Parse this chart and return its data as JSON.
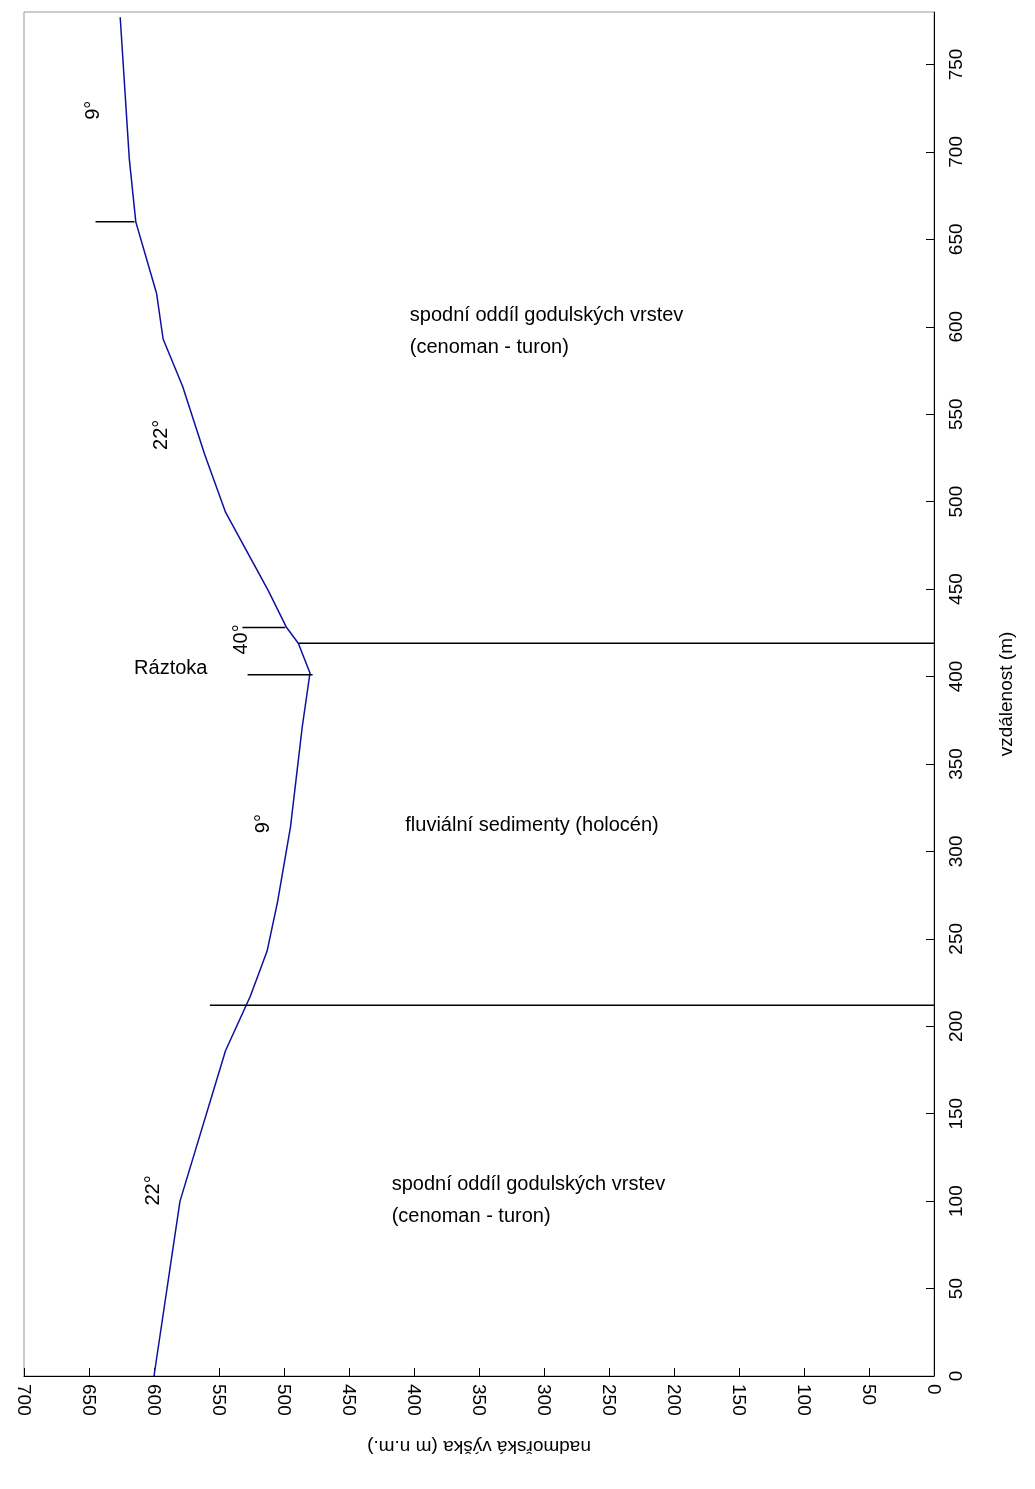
{
  "chart_data": {
    "type": "line",
    "xlabel": "nadmořská výška (m n.m.)",
    "ylabel": "vzdálenost (m)",
    "xlim": [
      700,
      0
    ],
    "xticks": [
      700,
      650,
      600,
      550,
      500,
      450,
      400,
      350,
      300,
      250,
      200,
      150,
      100,
      50,
      0
    ],
    "ylim": [
      0,
      780
    ],
    "yticks": [
      0,
      50,
      100,
      150,
      200,
      250,
      300,
      350,
      400,
      450,
      500,
      550,
      600,
      650,
      700,
      750
    ],
    "grid": false,
    "marker": "none",
    "line_style": "solid",
    "series": [
      {
        "color": "#1010a0",
        "x": [
          600,
          580,
          545,
          526,
          513,
          505,
          495,
          486,
          480,
          489,
          498,
          512,
          545,
          561,
          578,
          593,
          598,
          614,
          619,
          626
        ],
        "values": [
          0,
          100,
          186,
          217,
          243,
          271,
          314,
          371,
          402,
          419,
          428,
          449,
          494,
          527,
          566,
          593,
          619,
          660,
          696,
          777
        ]
      },
      {
        "color": "#000000",
        "x": [
          489,
          0
        ],
        "values": [
          419,
          419
        ]
      },
      {
        "color": "#000000",
        "x": [
          557,
          0
        ],
        "values": [
          212,
          212
        ]
      },
      {
        "color": "#000000",
        "x": [
          645,
          615
        ],
        "values": [
          660,
          660
        ]
      },
      {
        "color": "#000000",
        "x": [
          532,
          499
        ],
        "values": [
          428,
          428
        ]
      },
      {
        "color": "#000000",
        "x": [
          528,
          478
        ],
        "values": [
          401,
          401
        ]
      }
    ],
    "annotations": [
      "9°",
      "22°",
      "40°",
      "Ráztoka",
      "9°",
      "22°",
      "spodní oddíl godulských vrstev\n(cenoman - turon)",
      "fluviální sedimenty (holocén)",
      "spodní oddíl godulských vrstev\n(cenoman - turon)"
    ]
  }
}
